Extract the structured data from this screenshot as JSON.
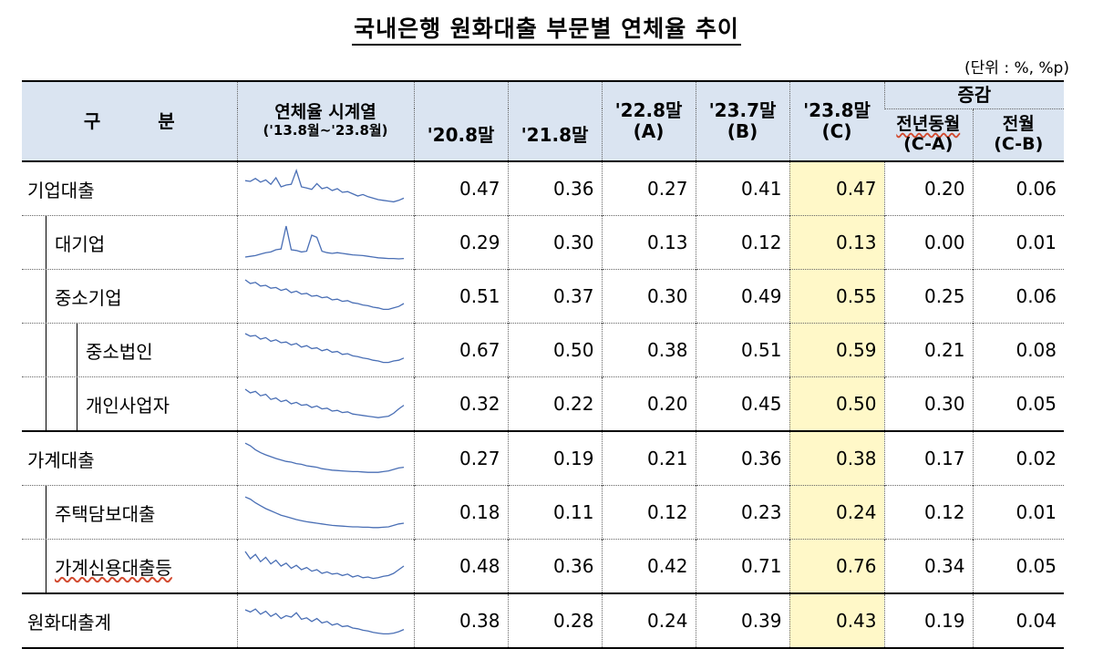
{
  "title": "국내은행 원화대출 부문별 연체율 추이",
  "unit": "(단위 : %, %p)",
  "header": {
    "category": "구 분",
    "series": "연체율 시계열",
    "series_period": "('13.8월~'23.8월)",
    "cols": [
      {
        "l1": "'20.8말",
        "l2": ""
      },
      {
        "l1": "'21.8말",
        "l2": ""
      },
      {
        "l1": "'22.8말",
        "l2": "(A)"
      },
      {
        "l1": "'23.7말",
        "l2": "(B)"
      },
      {
        "l1": "'23.8말",
        "l2": "(C)"
      }
    ],
    "change": "증감",
    "change_yoy": "전년동월",
    "change_yoy_sub": "(C-A)",
    "change_mom": "전월",
    "change_mom_sub": "(C-B)"
  },
  "rows": [
    {
      "label": "기업대출",
      "level": 0,
      "values": [
        "0.47",
        "0.36",
        "0.27",
        "0.41",
        "0.47",
        "0.20",
        "0.06"
      ],
      "spark": [
        0.72,
        0.7,
        0.78,
        0.68,
        0.74,
        0.62,
        0.8,
        0.55,
        0.6,
        0.62,
        1.0,
        0.55,
        0.52,
        0.48,
        0.64,
        0.5,
        0.54,
        0.45,
        0.5,
        0.4,
        0.42,
        0.36,
        0.3,
        0.34,
        0.28,
        0.24,
        0.2,
        0.18,
        0.16,
        0.14,
        0.18,
        0.24
      ]
    },
    {
      "label": "대기업",
      "level": 1,
      "values": [
        "0.29",
        "0.30",
        "0.13",
        "0.12",
        "0.13",
        "0.00",
        "0.01"
      ],
      "spark": [
        0.1,
        0.12,
        0.14,
        0.18,
        0.22,
        0.24,
        0.3,
        0.32,
        0.95,
        0.3,
        0.28,
        0.24,
        0.26,
        0.7,
        0.64,
        0.26,
        0.22,
        0.2,
        0.22,
        0.2,
        0.18,
        0.16,
        0.15,
        0.14,
        0.12,
        0.1,
        0.08,
        0.07,
        0.06,
        0.06,
        0.05,
        0.06
      ]
    },
    {
      "label": "중소기업",
      "level": 1,
      "values": [
        "0.51",
        "0.37",
        "0.30",
        "0.49",
        "0.55",
        "0.25",
        "0.06"
      ],
      "spark": [
        0.95,
        0.85,
        0.88,
        0.78,
        0.8,
        0.72,
        0.74,
        0.66,
        0.7,
        0.6,
        0.64,
        0.56,
        0.58,
        0.5,
        0.52,
        0.46,
        0.48,
        0.4,
        0.42,
        0.36,
        0.38,
        0.32,
        0.3,
        0.26,
        0.24,
        0.2,
        0.18,
        0.14,
        0.14,
        0.18,
        0.22,
        0.3
      ]
    },
    {
      "label": "중소법인",
      "level": 2,
      "values": [
        "0.67",
        "0.50",
        "0.38",
        "0.51",
        "0.59",
        "0.21",
        "0.08"
      ],
      "spark": [
        0.95,
        0.88,
        0.9,
        0.8,
        0.84,
        0.74,
        0.78,
        0.7,
        0.72,
        0.64,
        0.68,
        0.58,
        0.62,
        0.54,
        0.56,
        0.48,
        0.52,
        0.44,
        0.46,
        0.38,
        0.4,
        0.34,
        0.32,
        0.28,
        0.26,
        0.22,
        0.2,
        0.16,
        0.16,
        0.2,
        0.22,
        0.28
      ]
    },
    {
      "label": "개인사업자",
      "level": 2,
      "values": [
        "0.32",
        "0.22",
        "0.20",
        "0.45",
        "0.50",
        "0.30",
        "0.05"
      ],
      "spark": [
        0.9,
        0.8,
        0.84,
        0.72,
        0.76,
        0.62,
        0.66,
        0.56,
        0.6,
        0.5,
        0.54,
        0.46,
        0.48,
        0.4,
        0.44,
        0.36,
        0.38,
        0.3,
        0.32,
        0.26,
        0.28,
        0.22,
        0.2,
        0.18,
        0.16,
        0.14,
        0.12,
        0.14,
        0.16,
        0.24,
        0.36,
        0.46
      ]
    },
    {
      "label": "가계대출",
      "level": 0,
      "values": [
        "0.27",
        "0.19",
        "0.21",
        "0.36",
        "0.38",
        "0.17",
        "0.02"
      ],
      "spark": [
        0.92,
        0.85,
        0.74,
        0.66,
        0.6,
        0.55,
        0.5,
        0.46,
        0.42,
        0.4,
        0.36,
        0.34,
        0.3,
        0.28,
        0.26,
        0.22,
        0.2,
        0.18,
        0.17,
        0.16,
        0.15,
        0.14,
        0.14,
        0.13,
        0.12,
        0.12,
        0.12,
        0.14,
        0.16,
        0.2,
        0.24,
        0.26
      ]
    },
    {
      "label": "주택담보대출",
      "level": 1,
      "values": [
        "0.18",
        "0.11",
        "0.12",
        "0.23",
        "0.24",
        "0.12",
        "0.01"
      ],
      "spark": [
        0.92,
        0.86,
        0.76,
        0.68,
        0.6,
        0.54,
        0.48,
        0.42,
        0.38,
        0.34,
        0.3,
        0.27,
        0.24,
        0.22,
        0.2,
        0.18,
        0.16,
        0.14,
        0.13,
        0.12,
        0.11,
        0.1,
        0.1,
        0.09,
        0.09,
        0.08,
        0.08,
        0.09,
        0.1,
        0.14,
        0.18,
        0.2
      ]
    },
    {
      "label": "가계신용대출등",
      "level": 1,
      "values": [
        "0.48",
        "0.36",
        "0.42",
        "0.71",
        "0.76",
        "0.34",
        "0.05"
      ],
      "spark": [
        0.9,
        0.7,
        0.82,
        0.62,
        0.74,
        0.56,
        0.66,
        0.5,
        0.58,
        0.44,
        0.52,
        0.4,
        0.46,
        0.36,
        0.4,
        0.3,
        0.34,
        0.28,
        0.3,
        0.24,
        0.28,
        0.2,
        0.24,
        0.18,
        0.2,
        0.16,
        0.18,
        0.22,
        0.24,
        0.3,
        0.4,
        0.5
      ]
    },
    {
      "label": "원화대출계",
      "level": 0,
      "values": [
        "0.38",
        "0.28",
        "0.24",
        "0.39",
        "0.43",
        "0.19",
        "0.04"
      ],
      "spark": [
        0.8,
        0.74,
        0.82,
        0.68,
        0.76,
        0.62,
        0.7,
        0.56,
        0.64,
        0.6,
        0.72,
        0.54,
        0.58,
        0.48,
        0.56,
        0.44,
        0.48,
        0.38,
        0.42,
        0.34,
        0.36,
        0.3,
        0.28,
        0.24,
        0.22,
        0.18,
        0.16,
        0.14,
        0.14,
        0.16,
        0.2,
        0.26
      ]
    }
  ],
  "colors": {
    "header_bg": "#dae4f1",
    "highlight": "#fff8c8",
    "sparkline": "#4a6fb5"
  }
}
